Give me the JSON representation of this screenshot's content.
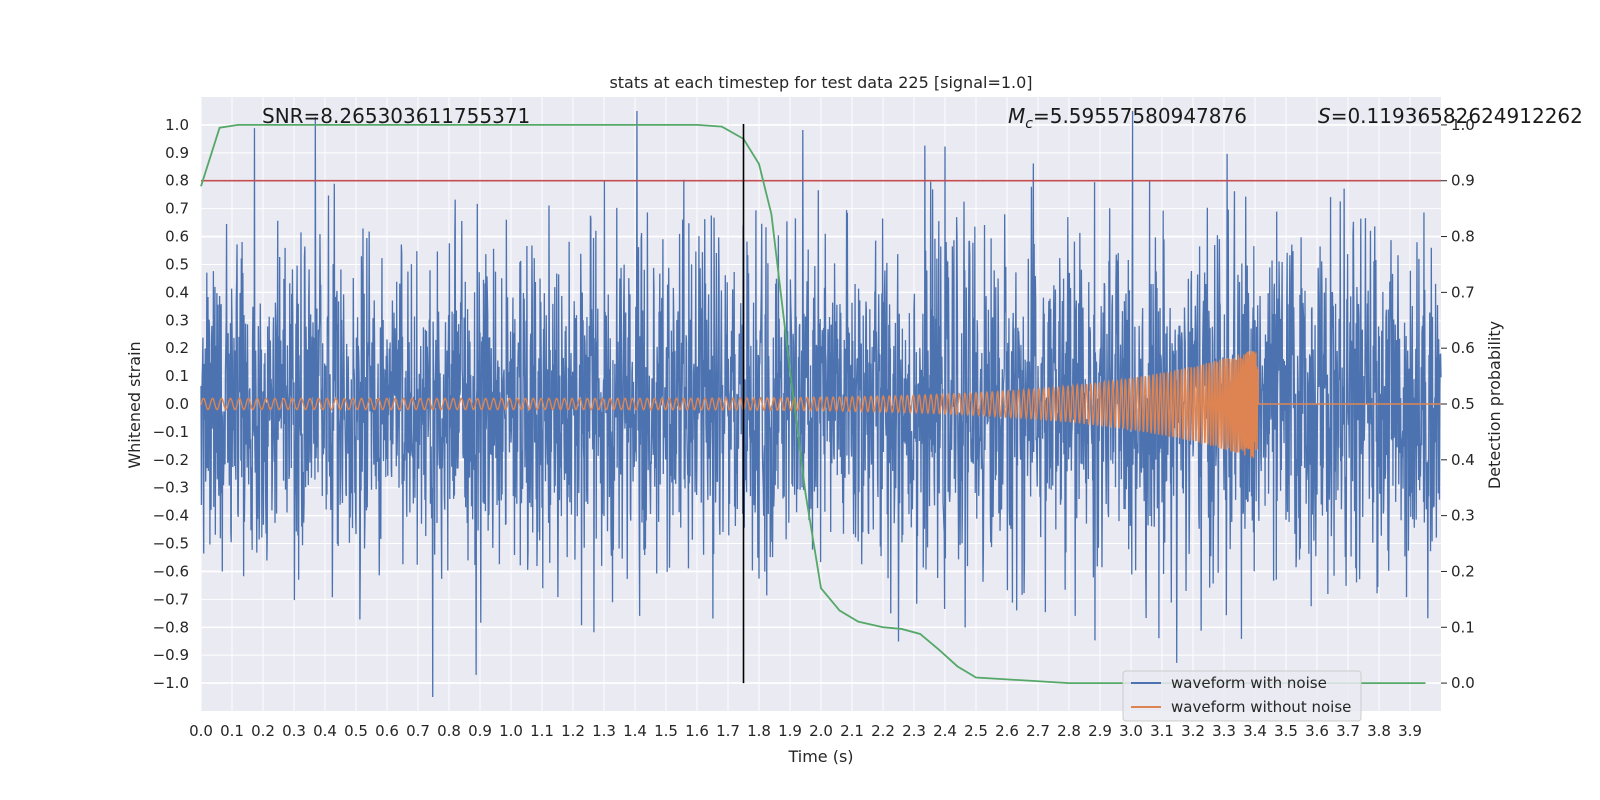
{
  "chart_data": {
    "type": "line",
    "title": "stats at each timestep for test data 225 [signal=1.0]",
    "xlabel": "Time (s)",
    "ylabel": "Whitened strain",
    "y2label": "Detection probability",
    "xlim": [
      0.0,
      4.0
    ],
    "ylim": [
      -1.1,
      1.1
    ],
    "y2lim": [
      -0.05,
      1.05
    ],
    "xticks": [
      "0.0",
      "0.1",
      "0.2",
      "0.3",
      "0.4",
      "0.5",
      "0.6",
      "0.7",
      "0.8",
      "0.9",
      "1.0",
      "1.1",
      "1.2",
      "1.3",
      "1.4",
      "1.5",
      "1.6",
      "1.7",
      "1.8",
      "1.9",
      "2.0",
      "2.1",
      "2.2",
      "2.3",
      "2.4",
      "2.5",
      "2.6",
      "2.7",
      "2.8",
      "2.9",
      "3.0",
      "3.1",
      "3.2",
      "3.3",
      "3.4",
      "3.5",
      "3.6",
      "3.7",
      "3.8",
      "3.9"
    ],
    "yticks": [
      "1.0",
      "0.9",
      "0.8",
      "0.7",
      "0.6",
      "0.5",
      "0.4",
      "0.3",
      "0.2",
      "0.1",
      "0.0",
      "−0.1",
      "−0.2",
      "−0.3",
      "−0.4",
      "−0.5",
      "−0.6",
      "−0.7",
      "−0.8",
      "−0.9",
      "−1.0"
    ],
    "y2ticks": [
      "1.0",
      "0.9",
      "0.8",
      "0.7",
      "0.6",
      "0.5",
      "0.4",
      "0.3",
      "0.2",
      "0.1",
      "0.0"
    ],
    "annotations": {
      "snr": "SNR=8.265303611755371",
      "mc": "=5.59557580947876",
      "mc_symbol": "M",
      "mc_sub": "c",
      "s": "=0.11936582624912262",
      "s_symbol": "S"
    },
    "legend": {
      "placement": "bottom-right",
      "entries": [
        "waveform with noise",
        "waveform without noise"
      ]
    },
    "threshold": {
      "axis": "y2",
      "value": 0.9,
      "color": "#c44e52"
    },
    "vline": {
      "x": 1.75,
      "color": "#000000"
    },
    "series": [
      {
        "name": "waveform with noise",
        "color": "#4c72b0",
        "axis": "y",
        "kind": "noise",
        "t_start": 0.0,
        "t_end": 4.0,
        "amplitude": 0.3
      },
      {
        "name": "waveform without noise",
        "color": "#dd8452",
        "axis": "y",
        "kind": "chirp",
        "t_start": 0.0,
        "t_end": 3.41,
        "amp_start": 0.02,
        "amp_end": 0.2
      },
      {
        "name": "detection probability",
        "color": "#55a868",
        "axis": "y2",
        "x": [
          0.0,
          0.06,
          0.12,
          0.2,
          0.4,
          0.8,
          1.2,
          1.6,
          1.68,
          1.75,
          1.8,
          1.84,
          1.9,
          1.95,
          2.0,
          2.06,
          2.12,
          2.2,
          2.26,
          2.32,
          2.38,
          2.44,
          2.5,
          2.8,
          3.2,
          3.6,
          3.95
        ],
        "y": [
          0.89,
          0.995,
          1.0,
          1.0,
          1.0,
          1.0,
          1.0,
          1.0,
          0.997,
          0.975,
          0.93,
          0.84,
          0.56,
          0.34,
          0.17,
          0.13,
          0.11,
          0.1,
          0.097,
          0.088,
          0.06,
          0.03,
          0.01,
          0.0,
          0.0,
          0.0,
          0.0
        ]
      }
    ]
  }
}
